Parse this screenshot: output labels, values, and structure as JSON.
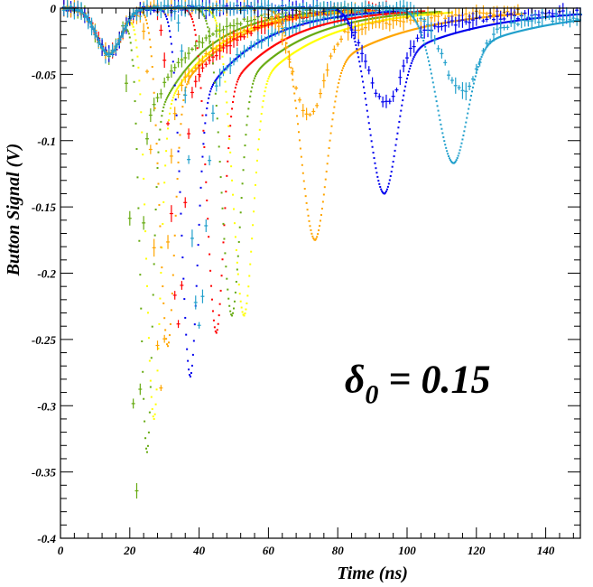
{
  "chart_data": {
    "type": "scatter",
    "xlabel": "Time (ns)",
    "ylabel": "Button Signal (V)",
    "xlim": [
      0,
      150
    ],
    "ylim": [
      -0.4,
      0
    ],
    "x_ticks": [
      0,
      20,
      40,
      60,
      80,
      100,
      120,
      140
    ],
    "x_tick_labels": [
      "0",
      "20",
      "40",
      "60",
      "80",
      "100",
      "120",
      "140"
    ],
    "y_ticks": [
      0,
      -0.05,
      -0.1,
      -0.15,
      -0.2,
      -0.25,
      -0.3,
      -0.35,
      -0.4
    ],
    "y_tick_labels": [
      "0",
      "-0.05",
      "-0.1",
      "-0.15",
      "-0.2",
      "-0.25",
      "-0.3",
      "-0.35",
      "-0.4"
    ],
    "grid": false,
    "annotation": {
      "symbol": "δ",
      "subscript": "0",
      "text": " = 0.15"
    },
    "series": [
      {
        "color": "#66aa11",
        "peak_x": 22,
        "peak_y": -0.365,
        "width": 2.2,
        "noisy": true
      },
      {
        "color": "#66aa11",
        "peak_x": 25,
        "peak_y": -0.335,
        "width": 2.8,
        "noisy": false
      },
      {
        "color": "#ffff00",
        "peak_x": 27,
        "peak_y": -0.31,
        "width": 3.2,
        "noisy": false
      },
      {
        "color": "#ffa500",
        "peak_x": 29,
        "peak_y": -0.285,
        "width": 3.0,
        "noisy": true
      },
      {
        "color": "#ffa500",
        "peak_x": 31,
        "peak_y": -0.255,
        "width": 3.4,
        "noisy": false
      },
      {
        "color": "#ff0000",
        "peak_x": 34,
        "peak_y": -0.24,
        "width": 3.0,
        "noisy": true
      },
      {
        "color": "#0000ee",
        "peak_x": 37.5,
        "peak_y": -0.278,
        "width": 3.6,
        "noisy": false
      },
      {
        "color": "#22a0cc",
        "peak_x": 40,
        "peak_y": -0.24,
        "width": 3.5,
        "noisy": true
      },
      {
        "color": "#ff0000",
        "peak_x": 45,
        "peak_y": -0.245,
        "width": 3.8,
        "noisy": false
      },
      {
        "color": "#66aa11",
        "peak_x": 49.5,
        "peak_y": -0.232,
        "width": 4.2,
        "noisy": false
      },
      {
        "color": "#ffff00",
        "peak_x": 53,
        "peak_y": -0.232,
        "width": 4.6,
        "noisy": false
      },
      {
        "color": "#ffa500",
        "peak_x": 73.5,
        "peak_y": -0.175,
        "width": 6.0,
        "noisy": false
      },
      {
        "color": "#ffa500",
        "peak_x": 72,
        "peak_y": -0.082,
        "width": 7.0,
        "noisy": true
      },
      {
        "color": "#0000ee",
        "peak_x": 93.5,
        "peak_y": -0.14,
        "width": 6.5,
        "noisy": false
      },
      {
        "color": "#0000ee",
        "peak_x": 94,
        "peak_y": -0.072,
        "width": 8.0,
        "noisy": true
      },
      {
        "color": "#22a0cc",
        "peak_x": 113.5,
        "peak_y": -0.117,
        "width": 7.0,
        "noisy": false
      },
      {
        "color": "#22a0cc",
        "peak_x": 116,
        "peak_y": -0.063,
        "width": 8.0,
        "noisy": true
      }
    ]
  }
}
